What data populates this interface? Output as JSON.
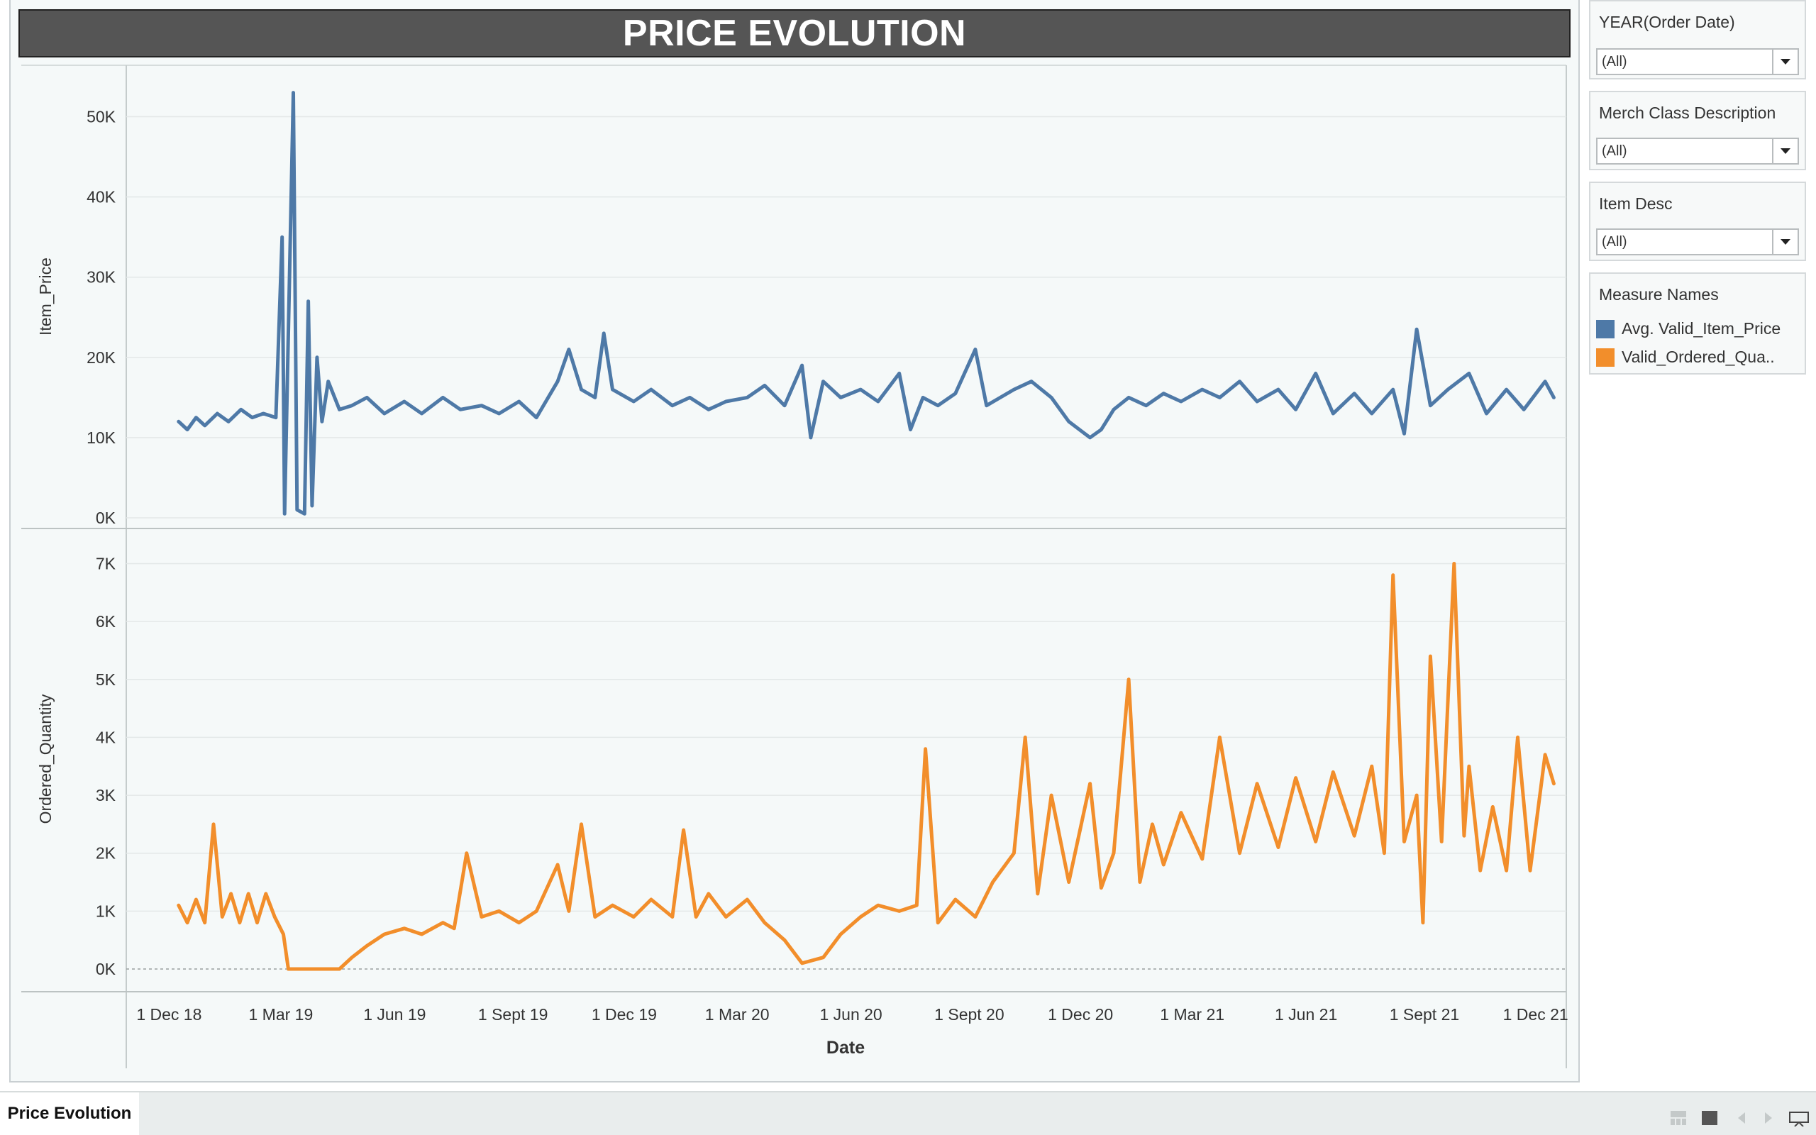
{
  "title": "PRICE EVOLUTION",
  "colors": {
    "price": "#4e79a7",
    "quantity": "#f28e2b",
    "title_bg": "#555555"
  },
  "filters": [
    {
      "label": "YEAR(Order Date)",
      "value": "(All)"
    },
    {
      "label": "Merch Class Description",
      "value": "(All)"
    },
    {
      "label": "Item Desc",
      "value": "(All)"
    }
  ],
  "legend": {
    "title": "Measure Names",
    "items": [
      {
        "label": "Avg. Valid_Item_Price",
        "color": "#4e79a7"
      },
      {
        "label": "Valid_Ordered_Qua..",
        "color": "#f28e2b"
      }
    ]
  },
  "footer": {
    "sheet_tab": "Price Evolution",
    "icons": [
      "sheet-sorter-icon",
      "tab-icon",
      "previous-icon",
      "next-icon",
      "presentation-mode-icon"
    ]
  },
  "chart_data": {
    "type": "line",
    "xlabel": "Date",
    "x_ticks": [
      "1 Dec 18",
      "1 Mar 19",
      "1 Jun 19",
      "1 Sept 19",
      "1 Dec 19",
      "1 Mar 20",
      "1 Jun 20",
      "1 Sept 20",
      "1 Dec 20",
      "1 Mar 21",
      "1 Jun 21",
      "1 Sept 21",
      "1 Dec 21"
    ],
    "x_range": [
      "2018-11-20",
      "2022-01-18"
    ],
    "panes": [
      {
        "ylabel": "Item_Price",
        "series_name": "Avg. Valid_Item_Price",
        "ylim": [
          0,
          55000
        ],
        "y_ticks": [
          0,
          10000,
          20000,
          30000,
          40000,
          50000
        ],
        "y_tick_labels": [
          "0K",
          "10K",
          "20K",
          "30K",
          "40K",
          "50K"
        ],
        "points": [
          [
            "2019-01-01",
            12000
          ],
          [
            "2019-01-08",
            11000
          ],
          [
            "2019-01-15",
            12500
          ],
          [
            "2019-01-22",
            11500
          ],
          [
            "2019-02-01",
            13000
          ],
          [
            "2019-02-10",
            12000
          ],
          [
            "2019-02-20",
            13500
          ],
          [
            "2019-03-01",
            12500
          ],
          [
            "2019-03-10",
            13000
          ],
          [
            "2019-03-20",
            12500
          ],
          [
            "2019-03-25",
            35000
          ],
          [
            "2019-03-27",
            500
          ],
          [
            "2019-04-03",
            53000
          ],
          [
            "2019-04-06",
            1000
          ],
          [
            "2019-04-12",
            500
          ],
          [
            "2019-04-15",
            27000
          ],
          [
            "2019-04-18",
            1500
          ],
          [
            "2019-04-22",
            20000
          ],
          [
            "2019-04-26",
            12000
          ],
          [
            "2019-05-01",
            17000
          ],
          [
            "2019-05-10",
            13500
          ],
          [
            "2019-05-20",
            14000
          ],
          [
            "2019-06-01",
            15000
          ],
          [
            "2019-06-15",
            13000
          ],
          [
            "2019-07-01",
            14500
          ],
          [
            "2019-07-15",
            13000
          ],
          [
            "2019-08-01",
            15000
          ],
          [
            "2019-08-15",
            13500
          ],
          [
            "2019-09-01",
            14000
          ],
          [
            "2019-09-15",
            13000
          ],
          [
            "2019-10-01",
            14500
          ],
          [
            "2019-10-15",
            12500
          ],
          [
            "2019-11-01",
            17000
          ],
          [
            "2019-11-10",
            21000
          ],
          [
            "2019-11-20",
            16000
          ],
          [
            "2019-12-01",
            15000
          ],
          [
            "2019-12-08",
            23000
          ],
          [
            "2019-12-15",
            16000
          ],
          [
            "2020-01-01",
            14500
          ],
          [
            "2020-01-15",
            16000
          ],
          [
            "2020-02-01",
            14000
          ],
          [
            "2020-02-15",
            15000
          ],
          [
            "2020-03-01",
            13500
          ],
          [
            "2020-03-15",
            14500
          ],
          [
            "2020-04-01",
            15000
          ],
          [
            "2020-04-15",
            16500
          ],
          [
            "2020-05-01",
            14000
          ],
          [
            "2020-05-15",
            19000
          ],
          [
            "2020-05-22",
            10000
          ],
          [
            "2020-06-01",
            17000
          ],
          [
            "2020-06-15",
            15000
          ],
          [
            "2020-07-01",
            16000
          ],
          [
            "2020-07-15",
            14500
          ],
          [
            "2020-08-01",
            18000
          ],
          [
            "2020-08-10",
            11000
          ],
          [
            "2020-08-20",
            15000
          ],
          [
            "2020-09-01",
            14000
          ],
          [
            "2020-09-15",
            15500
          ],
          [
            "2020-10-01",
            21000
          ],
          [
            "2020-10-10",
            14000
          ],
          [
            "2020-11-01",
            16000
          ],
          [
            "2020-11-15",
            17000
          ],
          [
            "2020-12-01",
            15000
          ],
          [
            "2020-12-15",
            12000
          ],
          [
            "2021-01-01",
            10000
          ],
          [
            "2021-01-10",
            11000
          ],
          [
            "2021-01-20",
            13500
          ],
          [
            "2021-02-01",
            15000
          ],
          [
            "2021-02-15",
            14000
          ],
          [
            "2021-03-01",
            15500
          ],
          [
            "2021-03-15",
            14500
          ],
          [
            "2021-04-01",
            16000
          ],
          [
            "2021-04-15",
            15000
          ],
          [
            "2021-05-01",
            17000
          ],
          [
            "2021-05-15",
            14500
          ],
          [
            "2021-06-01",
            16000
          ],
          [
            "2021-06-15",
            13500
          ],
          [
            "2021-07-01",
            18000
          ],
          [
            "2021-07-15",
            13000
          ],
          [
            "2021-08-01",
            15500
          ],
          [
            "2021-08-15",
            13000
          ],
          [
            "2021-09-01",
            16000
          ],
          [
            "2021-09-10",
            10500
          ],
          [
            "2021-09-20",
            23500
          ],
          [
            "2021-10-01",
            14000
          ],
          [
            "2021-10-15",
            16000
          ],
          [
            "2021-11-01",
            18000
          ],
          [
            "2021-11-15",
            13000
          ],
          [
            "2021-12-01",
            16000
          ],
          [
            "2021-12-15",
            13500
          ],
          [
            "2022-01-01",
            17000
          ],
          [
            "2022-01-08",
            15000
          ]
        ]
      },
      {
        "ylabel": "Ordered_Quantity",
        "series_name": "Valid_Ordered_Qua..",
        "ylim": [
          0,
          7300
        ],
        "y_ticks": [
          0,
          1000,
          2000,
          3000,
          4000,
          5000,
          6000,
          7000
        ],
        "y_tick_labels": [
          "0K",
          "1K",
          "2K",
          "3K",
          "4K",
          "5K",
          "6K",
          "7K"
        ],
        "points": [
          [
            "2019-01-01",
            1100
          ],
          [
            "2019-01-08",
            800
          ],
          [
            "2019-01-15",
            1200
          ],
          [
            "2019-01-22",
            800
          ],
          [
            "2019-01-29",
            2500
          ],
          [
            "2019-02-05",
            900
          ],
          [
            "2019-02-12",
            1300
          ],
          [
            "2019-02-19",
            800
          ],
          [
            "2019-02-26",
            1300
          ],
          [
            "2019-03-05",
            800
          ],
          [
            "2019-03-12",
            1300
          ],
          [
            "2019-03-19",
            900
          ],
          [
            "2019-03-26",
            600
          ],
          [
            "2019-03-30",
            0
          ],
          [
            "2019-04-15",
            0
          ],
          [
            "2019-05-01",
            0
          ],
          [
            "2019-05-10",
            0
          ],
          [
            "2019-05-20",
            200
          ],
          [
            "2019-06-01",
            400
          ],
          [
            "2019-06-15",
            600
          ],
          [
            "2019-07-01",
            700
          ],
          [
            "2019-07-15",
            600
          ],
          [
            "2019-08-01",
            800
          ],
          [
            "2019-08-10",
            700
          ],
          [
            "2019-08-20",
            2000
          ],
          [
            "2019-09-01",
            900
          ],
          [
            "2019-09-15",
            1000
          ],
          [
            "2019-10-01",
            800
          ],
          [
            "2019-10-15",
            1000
          ],
          [
            "2019-11-01",
            1800
          ],
          [
            "2019-11-10",
            1000
          ],
          [
            "2019-11-20",
            2500
          ],
          [
            "2019-12-01",
            900
          ],
          [
            "2019-12-15",
            1100
          ],
          [
            "2020-01-01",
            900
          ],
          [
            "2020-01-15",
            1200
          ],
          [
            "2020-02-01",
            900
          ],
          [
            "2020-02-10",
            2400
          ],
          [
            "2020-02-20",
            900
          ],
          [
            "2020-03-01",
            1300
          ],
          [
            "2020-03-15",
            900
          ],
          [
            "2020-04-01",
            1200
          ],
          [
            "2020-04-15",
            800
          ],
          [
            "2020-05-01",
            500
          ],
          [
            "2020-05-15",
            100
          ],
          [
            "2020-06-01",
            200
          ],
          [
            "2020-06-15",
            600
          ],
          [
            "2020-07-01",
            900
          ],
          [
            "2020-07-15",
            1100
          ],
          [
            "2020-08-01",
            1000
          ],
          [
            "2020-08-15",
            1100
          ],
          [
            "2020-08-22",
            3800
          ],
          [
            "2020-09-01",
            800
          ],
          [
            "2020-09-15",
            1200
          ],
          [
            "2020-10-01",
            900
          ],
          [
            "2020-10-15",
            1500
          ],
          [
            "2020-11-01",
            2000
          ],
          [
            "2020-11-10",
            4000
          ],
          [
            "2020-11-20",
            1300
          ],
          [
            "2020-12-01",
            3000
          ],
          [
            "2020-12-15",
            1500
          ],
          [
            "2021-01-01",
            3200
          ],
          [
            "2021-01-10",
            1400
          ],
          [
            "2021-01-20",
            2000
          ],
          [
            "2021-02-01",
            5000
          ],
          [
            "2021-02-10",
            1500
          ],
          [
            "2021-02-20",
            2500
          ],
          [
            "2021-03-01",
            1800
          ],
          [
            "2021-03-15",
            2700
          ],
          [
            "2021-04-01",
            1900
          ],
          [
            "2021-04-15",
            4000
          ],
          [
            "2021-05-01",
            2000
          ],
          [
            "2021-05-15",
            3200
          ],
          [
            "2021-06-01",
            2100
          ],
          [
            "2021-06-15",
            3300
          ],
          [
            "2021-07-01",
            2200
          ],
          [
            "2021-07-15",
            3400
          ],
          [
            "2021-08-01",
            2300
          ],
          [
            "2021-08-15",
            3500
          ],
          [
            "2021-08-25",
            2000
          ],
          [
            "2021-09-01",
            6800
          ],
          [
            "2021-09-10",
            2200
          ],
          [
            "2021-09-20",
            3000
          ],
          [
            "2021-09-25",
            800
          ],
          [
            "2021-10-01",
            5400
          ],
          [
            "2021-10-10",
            2200
          ],
          [
            "2021-10-20",
            7000
          ],
          [
            "2021-10-28",
            2300
          ],
          [
            "2021-11-01",
            3500
          ],
          [
            "2021-11-10",
            1700
          ],
          [
            "2021-11-20",
            2800
          ],
          [
            "2021-12-01",
            1700
          ],
          [
            "2021-12-10",
            4000
          ],
          [
            "2021-12-20",
            1700
          ],
          [
            "2022-01-01",
            3700
          ],
          [
            "2022-01-08",
            3200
          ]
        ]
      }
    ]
  }
}
